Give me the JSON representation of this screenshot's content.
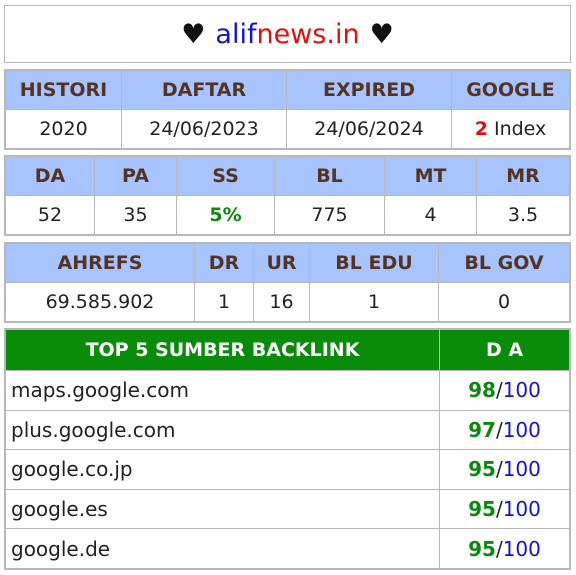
{
  "header": {
    "heart_left": "♥",
    "domain_part1": "alif",
    "domain_part2": "news.in",
    "heart_right": "♥"
  },
  "table1": {
    "headers": [
      "HISTORI",
      "DAFTAR",
      "EXPIRED",
      "GOOGLE"
    ],
    "histori": "2020",
    "daftar": "24/06/2023",
    "expired": "24/06/2024",
    "google_count": "2",
    "google_suffix": " Index"
  },
  "table2": {
    "headers": [
      "DA",
      "PA",
      "SS",
      "BL",
      "MT",
      "MR"
    ],
    "values": [
      "52",
      "35",
      "5%",
      "775",
      "4",
      "3.5"
    ]
  },
  "table3": {
    "headers": [
      "AHREFS",
      "DR",
      "UR",
      "BL EDU",
      "BL GOV"
    ],
    "values": [
      "69.585.902",
      "1",
      "16",
      "1",
      "0"
    ]
  },
  "backlinks": {
    "header_source": "TOP 5 SUMBER BACKLINK",
    "header_da": "D A",
    "max_label": "100",
    "rows": [
      {
        "site": "maps.google.com",
        "da": "98"
      },
      {
        "site": "plus.google.com",
        "da": "97"
      },
      {
        "site": "google.co.jp",
        "da": "95"
      },
      {
        "site": "google.es",
        "da": "95"
      },
      {
        "site": "google.de",
        "da": "95"
      }
    ]
  }
}
